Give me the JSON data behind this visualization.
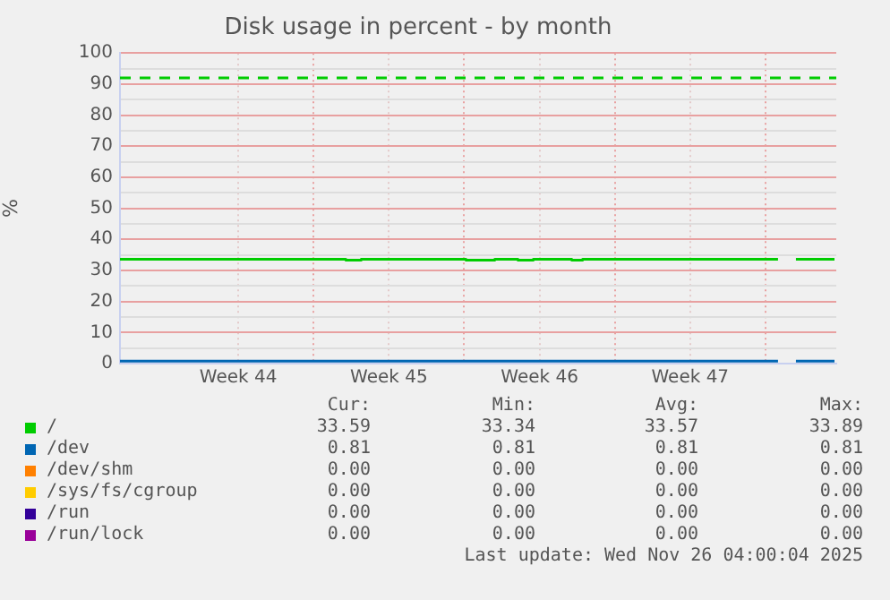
{
  "chart_data": {
    "type": "line",
    "title": "Disk usage in percent - by month",
    "ylabel": "%",
    "xlim": [
      "2025-10-25T00:00",
      "2025-11-27T07:00"
    ],
    "xticks": [
      {
        "value": "2025-10-30T12:00",
        "label": "Week 44"
      },
      {
        "value": "2025-11-03T00:00",
        "label": null
      },
      {
        "value": "2025-11-06T12:00",
        "label": "Week 45"
      },
      {
        "value": "2025-11-10T00:00",
        "label": null
      },
      {
        "value": "2025-11-13T12:00",
        "label": "Week 46"
      },
      {
        "value": "2025-11-17T00:00",
        "label": null
      },
      {
        "value": "2025-11-20T12:00",
        "label": "Week 47"
      },
      {
        "value": "2025-11-24T00:00",
        "label": null
      }
    ],
    "ylim": [
      0,
      100
    ],
    "yticks": [
      0,
      {
        "value": 5,
        "label": null
      },
      10,
      {
        "value": 15,
        "label": null
      },
      20,
      {
        "value": 25,
        "label": null
      },
      30,
      {
        "value": 35,
        "label": null
      },
      40,
      {
        "value": 45,
        "label": null
      },
      50,
      {
        "value": 55,
        "label": null
      },
      60,
      {
        "value": 65,
        "label": null
      },
      70,
      {
        "value": 75,
        "label": null
      },
      80,
      {
        "value": 85,
        "label": null
      },
      90,
      {
        "value": 95,
        "label": null
      },
      100
    ],
    "grid": true,
    "legend": "bottom",
    "marker": "none",
    "line_style": "solid",
    "ref_lines": [
      {
        "axis": "y",
        "value": 92,
        "color": "#00cc00",
        "line_style": "dashed"
      }
    ],
    "series": [
      {
        "name": "/",
        "color": "#00cc00",
        "x": [
          "2025-10-25T00:00",
          "2025-11-04T12:00",
          "2025-11-04T12:00",
          "2025-11-05T05:00",
          "2025-11-05T05:00",
          "2025-11-10T02:00",
          "2025-11-10T02:00",
          "2025-11-11T10:00",
          "2025-11-11T10:00",
          "2025-11-12T12:00",
          "2025-11-12T12:00",
          "2025-11-13T05:00",
          "2025-11-13T05:00",
          "2025-11-15T00:00",
          "2025-11-15T00:00",
          "2025-11-15T12:00",
          "2025-11-15T12:00",
          "2025-11-24T14:00",
          "2025-11-25T00:00",
          "2025-11-25T10:00",
          "2025-11-27T05:00"
        ],
        "values": [
          33.6,
          33.6,
          33.3,
          33.3,
          33.6,
          33.6,
          33.3,
          33.3,
          33.6,
          33.6,
          33.3,
          33.3,
          33.6,
          33.6,
          33.3,
          33.3,
          33.6,
          33.6,
          null,
          33.6,
          33.6
        ]
      },
      {
        "name": "/dev",
        "color": "#0066b3",
        "x": [
          "2025-10-25T00:00",
          "2025-11-24T14:00",
          "2025-11-25T00:00",
          "2025-11-25T10:00",
          "2025-11-27T05:00"
        ],
        "values": [
          0.81,
          0.81,
          null,
          0.81,
          0.81
        ]
      },
      {
        "name": "/dev/shm",
        "color": "#ff8000"
      },
      {
        "name": "/sys/fs/cgroup",
        "color": "#ffcc00"
      },
      {
        "name": "/run",
        "color": "#330099"
      },
      {
        "name": "/run/lock",
        "color": "#990099"
      }
    ],
    "annotations": [
      "Cur:",
      "Min:",
      "Avg:",
      "Max:",
      "33.59",
      "33.34",
      "33.57",
      "33.89",
      "0.81",
      "0.81",
      "0.81",
      "0.81",
      "0.00",
      "0.00",
      "0.00",
      "0.00",
      "0.00",
      "0.00",
      "0.00",
      "0.00",
      "0.00",
      "0.00",
      "0.00",
      "0.00",
      "0.00",
      "0.00",
      "0.00",
      "0.00",
      "Last update: Wed Nov 26 04:00:04 2025"
    ]
  }
}
